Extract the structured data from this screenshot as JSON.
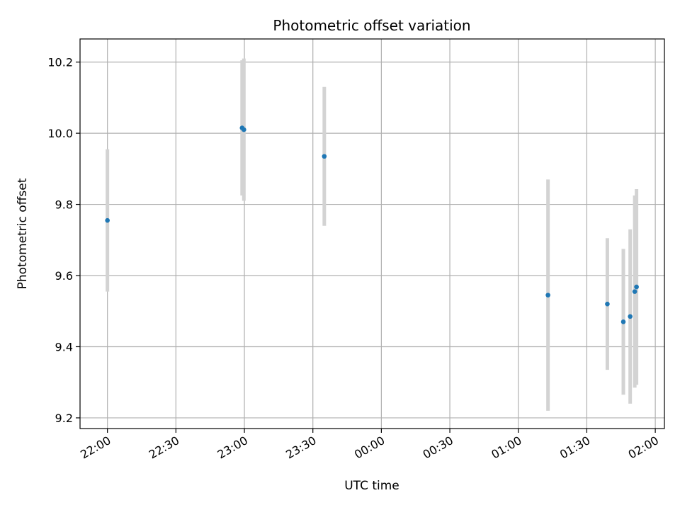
{
  "chart_data": {
    "type": "scatter",
    "title": "Photometric offset variation",
    "xlabel": "UTC time",
    "ylabel": "Photometric offset",
    "grid": true,
    "xlim": [
      "21:48",
      "02:04"
    ],
    "ylim": [
      9.17,
      10.265
    ],
    "x_ticks": [
      "22:00",
      "22:30",
      "23:00",
      "23:30",
      "00:00",
      "00:30",
      "01:00",
      "01:30",
      "02:00"
    ],
    "y_ticks": [
      "9.2",
      "9.4",
      "9.6",
      "9.8",
      "10.0",
      "10.2"
    ],
    "y_tick_values": [
      9.2,
      9.4,
      9.6,
      9.8,
      10.0,
      10.2
    ],
    "colors": {
      "point": "#1f77b4",
      "errorbar": "#d3d3d3",
      "grid": "#b0b0b0"
    },
    "series": [
      {
        "points": [
          {
            "x": "22:00",
            "y": 9.755,
            "yerr": 0.2
          },
          {
            "x": "22:59",
            "y": 10.015,
            "yerr": 0.19
          },
          {
            "x": "22:59",
            "y": 10.01,
            "yerr": 0.2
          },
          {
            "x": "23:35",
            "y": 9.935,
            "yerr": 0.195
          },
          {
            "x": "01:13",
            "y": 9.545,
            "yerr": 0.325
          },
          {
            "x": "01:39",
            "y": 9.52,
            "yerr": 0.185
          },
          {
            "x": "01:46",
            "y": 9.47,
            "yerr": 0.205
          },
          {
            "x": "01:49",
            "y": 9.485,
            "yerr": 0.245
          },
          {
            "x": "01:51",
            "y": 9.555,
            "yerr": 0.27
          },
          {
            "x": "01:51",
            "y": 9.568,
            "yerr": 0.275
          }
        ]
      }
    ]
  }
}
